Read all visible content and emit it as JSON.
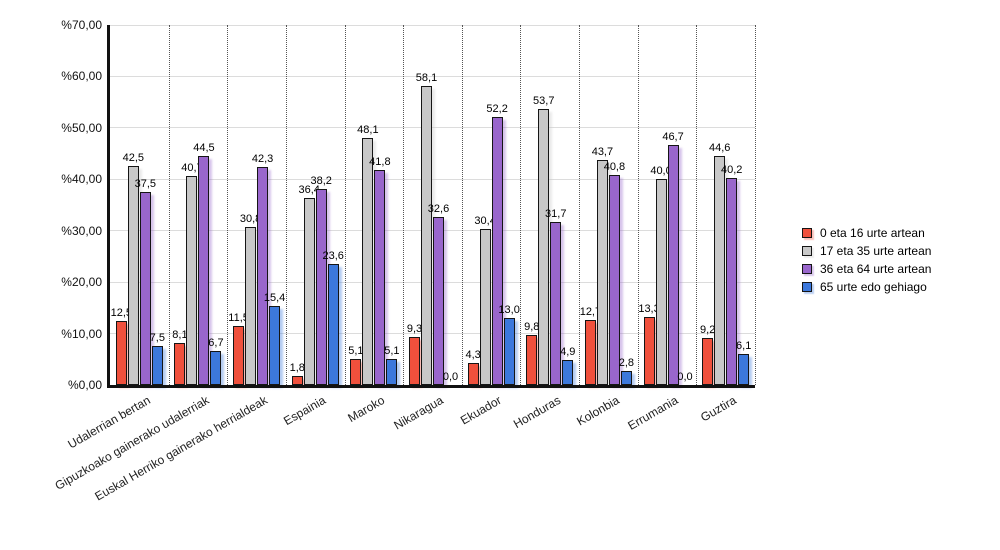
{
  "chart_data": {
    "type": "bar",
    "categories": [
      "Udalerrian bertan",
      "Gipuzkoako gainerako udalerriak",
      "Euskal Herriko gainerako herrialdeak",
      "Espainia",
      "Maroko",
      "Nikaragua",
      "Ekuador",
      "Honduras",
      "Kolonbia",
      "Errumania",
      "Guztira"
    ],
    "series": [
      {
        "name": "0 eta 16 urte artean",
        "color": "#F0503C",
        "values": [
          12.5,
          8.1,
          11.5,
          1.8,
          5.1,
          9.3,
          4.3,
          9.8,
          12.7,
          13.3,
          9.2
        ]
      },
      {
        "name": "17 eta 35 urte artean",
        "color": "#C8C8C8",
        "values": [
          42.5,
          40.7,
          30.8,
          36.4,
          48.1,
          58.1,
          30.4,
          53.7,
          43.7,
          40.0,
          44.6
        ]
      },
      {
        "name": "36 eta 64 urte artean",
        "color": "#9966CC",
        "values": [
          37.5,
          44.5,
          42.3,
          38.2,
          41.8,
          32.6,
          52.2,
          31.7,
          40.8,
          46.7,
          40.2
        ]
      },
      {
        "name": "65 urte edo gehiago",
        "color": "#3C78DC",
        "values": [
          7.5,
          6.7,
          15.4,
          23.6,
          5.1,
          0.0,
          13.0,
          4.9,
          2.8,
          0.0,
          6.1
        ]
      }
    ],
    "y_ticks": [
      "%0,00",
      "%10,00",
      "%20,00",
      "%30,00",
      "%40,00",
      "%50,00",
      "%60,00",
      "%70,00"
    ],
    "ylim": [
      0,
      70
    ],
    "grid": true,
    "group_separators": "dotted",
    "legend_position": "right",
    "value_label_decimal_separator": ","
  }
}
